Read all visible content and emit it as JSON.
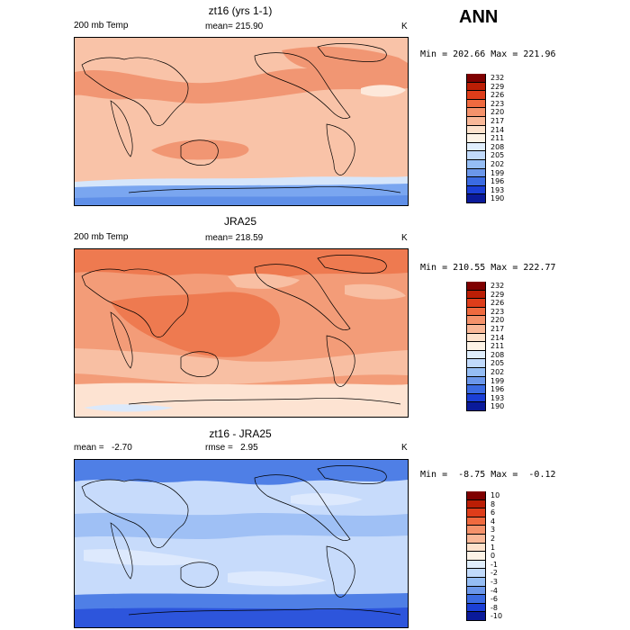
{
  "season": "ANN",
  "panels": [
    {
      "title": "zt16 (yrs 1-1)",
      "left": "200 mb Temp",
      "center": "mean= 215.90",
      "units": "K",
      "minmax": "Min = 202.66 Max = 221.96",
      "levels": [
        "232",
        "229",
        "226",
        "223",
        "220",
        "217",
        "214",
        "211",
        "208",
        "205",
        "202",
        "199",
        "196",
        "193",
        "190"
      ],
      "colors": [
        "#7f0000",
        "#bb1e05",
        "#de3d1a",
        "#ef6a3f",
        "#f4926b",
        "#f9b898",
        "#fde2cc",
        "#fdf3e6",
        "#e0eefc",
        "#c1dafb",
        "#95bdf4",
        "#6b97ea",
        "#3b6be2",
        "#1b3fd6",
        "#0a1a9a"
      ]
    },
    {
      "title": "JRA25",
      "left": "200 mb Temp",
      "center": "mean= 218.59",
      "units": "K",
      "minmax": "Min = 210.55 Max = 222.77",
      "levels": [
        "232",
        "229",
        "226",
        "223",
        "220",
        "217",
        "214",
        "211",
        "208",
        "205",
        "202",
        "199",
        "196",
        "193",
        "190"
      ],
      "colors": [
        "#7f0000",
        "#bb1e05",
        "#de3d1a",
        "#ef6a3f",
        "#f4926b",
        "#f9b898",
        "#fde2cc",
        "#fdf3e6",
        "#e0eefc",
        "#c1dafb",
        "#95bdf4",
        "#6b97ea",
        "#3b6be2",
        "#1b3fd6",
        "#0a1a9a"
      ]
    },
    {
      "title": "zt16 - JRA25",
      "left": "mean =   -2.70",
      "center": "rmse =   2.95",
      "units": "K",
      "minmax": "Min =  -8.75 Max =  -0.12",
      "levels": [
        "10",
        "8",
        "6",
        "4",
        "3",
        "2",
        "1",
        "0",
        "-1",
        "-2",
        "-3",
        "-4",
        "-6",
        "-8",
        "-10"
      ],
      "colors": [
        "#7f0000",
        "#bb1e05",
        "#de3d1a",
        "#ef6a3f",
        "#f4926b",
        "#f9b898",
        "#fde2cc",
        "#fdf3e6",
        "#e0eefc",
        "#c1dafb",
        "#95bdf4",
        "#6b97ea",
        "#3b6be2",
        "#1b3fd6",
        "#0a1a9a"
      ]
    }
  ],
  "palette": {
    "t200_zt16": {
      "base": "#f9c3a8",
      "warm": "#f19673",
      "cool_band": "#d6e6fb",
      "polar": "#7aa6f0",
      "deep": "#5f8fe8"
    },
    "t200_jra25": {
      "base": "#f39c78",
      "warm": "#ee7a50",
      "light": "#f8bfa3",
      "pale": "#fde3d2",
      "cool": "#dbe9fb"
    },
    "diff": {
      "base": "#c7dbfb",
      "mid": "#9fc0f5",
      "strong": "#4f7fe6",
      "deep": "#2d55dc",
      "light": "#dde9fd"
    }
  }
}
